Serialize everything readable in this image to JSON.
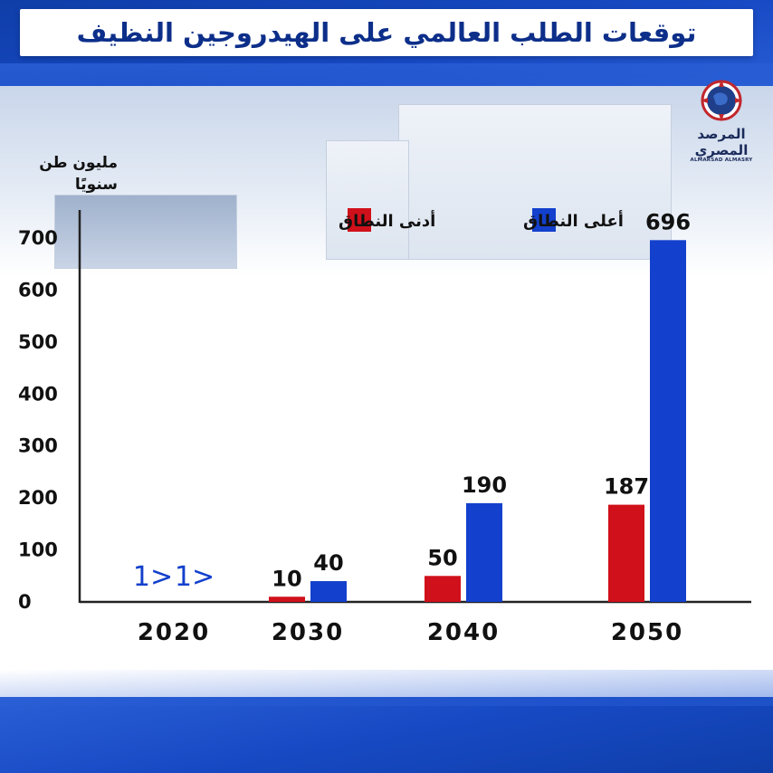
{
  "title": "توقعات الطلب العالمي على الهيدروجين النظيف",
  "logo": {
    "name_line1": "المرصد",
    "name_line2": "المصري",
    "sub": "ALMARSAD ALMASRY"
  },
  "colors": {
    "low": "#d0101a",
    "high": "#1340cc",
    "title": "#0d2f8a"
  },
  "chart_data": {
    "type": "bar",
    "title": "توقعات الطلب العالمي على الهيدروجين النظيف",
    "ylabel": "مليون طن سنويًا",
    "xlabel": "",
    "ylim": [
      0,
      700
    ],
    "yticks": [
      0,
      100,
      200,
      300,
      400,
      500,
      600,
      700
    ],
    "categories": [
      "2020",
      "2030",
      "2040",
      "2050"
    ],
    "grid": false,
    "legend_position": "top",
    "series": [
      {
        "name": "أدنى النطاق",
        "color": "#d0101a",
        "values": [
          null,
          10,
          50,
          187
        ],
        "labels": [
          "1>",
          "10",
          "50",
          "187"
        ]
      },
      {
        "name": "أعلى النطاق",
        "color": "#1340cc",
        "values": [
          null,
          40,
          190,
          696
        ],
        "labels": [
          "1>",
          "40",
          "190",
          "696"
        ]
      }
    ]
  }
}
